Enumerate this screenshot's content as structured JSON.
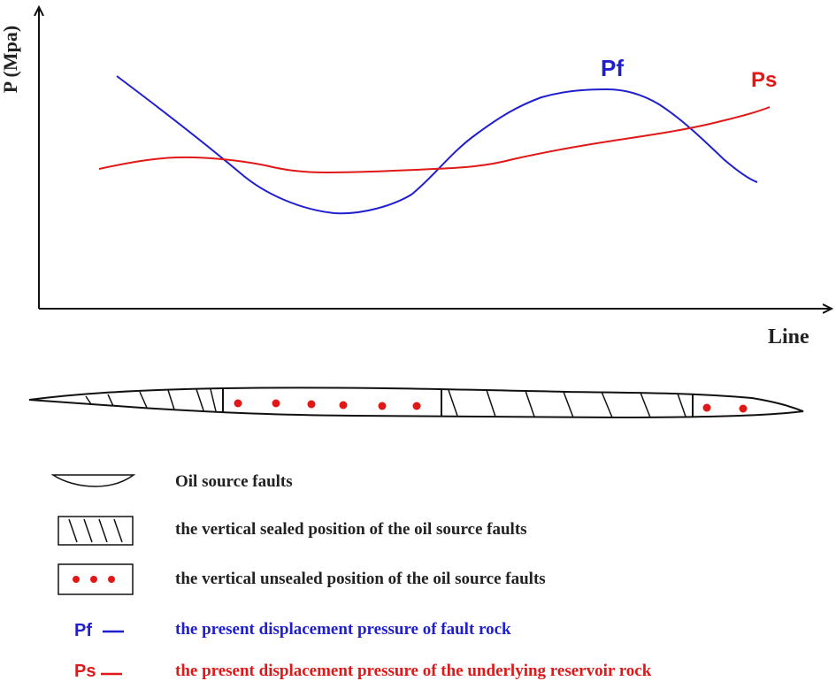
{
  "axes": {
    "y_label": "P (Mpa)",
    "x_label": "Line"
  },
  "curves": {
    "pf": {
      "label": "Pf",
      "color": "#1f1fd0"
    },
    "ps": {
      "label": "Ps",
      "color": "#e01818"
    }
  },
  "legend": {
    "oil_source_faults": "Oil source faults",
    "sealed": "the vertical sealed position of the oil source faults",
    "unsealed": "the vertical unsealed position of the oil source faults",
    "pf_key": "Pf",
    "pf_desc": "the present displacement pressure of fault rock",
    "ps_key": "Ps",
    "ps_desc": "the present displacement pressure of the underlying reservoir rock"
  },
  "colors": {
    "text": "#222222",
    "pf": "#1f1fd0",
    "ps": "#e01818",
    "axis": "#111111"
  }
}
